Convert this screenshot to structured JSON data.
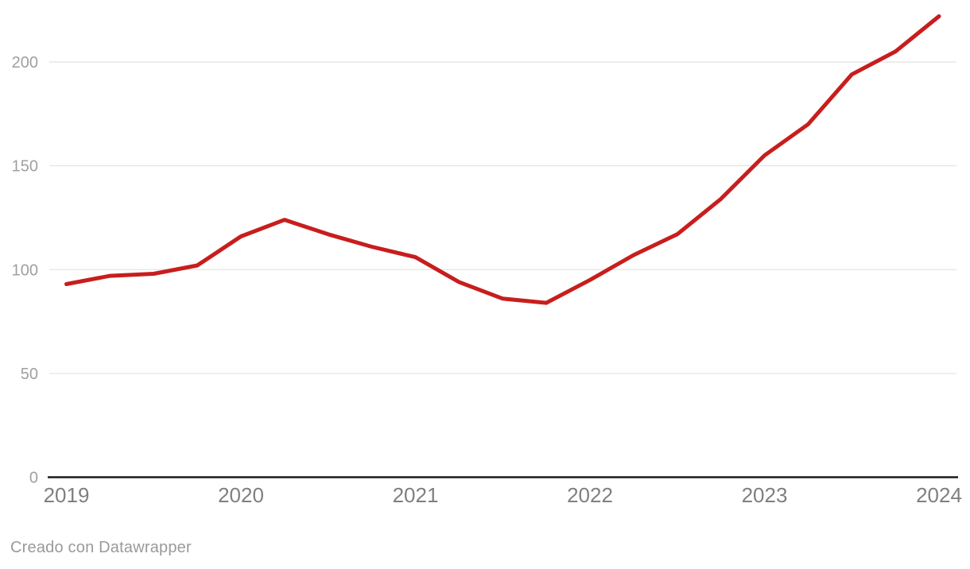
{
  "footer": {
    "credit": "Creado con Datawrapper"
  },
  "colors": {
    "background": "#ffffff",
    "line": "#c71e1d",
    "grid": "#e7e7e7",
    "axis_baseline": "#1b1b1b",
    "y_tick_label": "#a0a0a0",
    "x_tick_label": "#7f7f7f",
    "credit_text": "#9a9a9a"
  },
  "chart_data": {
    "type": "line",
    "title": "",
    "xlabel": "",
    "ylabel": "",
    "x": [
      2019,
      2019.25,
      2019.5,
      2019.75,
      2020,
      2020.25,
      2020.5,
      2020.75,
      2021,
      2021.25,
      2021.5,
      2021.75,
      2022,
      2022.25,
      2022.5,
      2022.75,
      2023,
      2023.25,
      2023.5,
      2023.75,
      2024
    ],
    "series": [
      {
        "values": [
          93,
          97,
          98,
          102,
          116,
          124,
          117,
          111,
          106,
          94,
          86,
          84,
          95,
          107,
          117,
          134,
          155,
          170,
          194,
          205,
          222
        ]
      }
    ],
    "x_ticks": [
      "2019",
      "2020",
      "2021",
      "2022",
      "2023",
      "2024"
    ],
    "y_ticks": [
      0,
      50,
      100,
      150,
      200
    ],
    "xlim": [
      2019,
      2024
    ],
    "ylim": [
      0,
      230
    ],
    "grid": "horizontal-only",
    "legend": "none"
  }
}
